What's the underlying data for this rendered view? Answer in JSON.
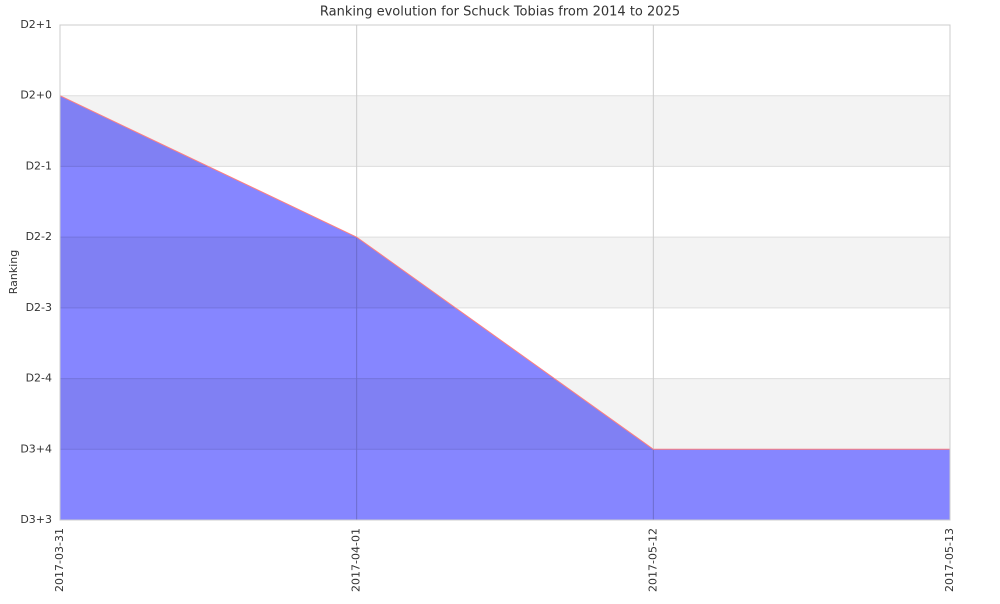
{
  "chart_data": {
    "type": "area",
    "title": "Ranking evolution for Schuck Tobias from 2014 to 2025",
    "y_label": "Ranking",
    "categories": [
      "2017-03-31",
      "2017-04-01",
      "2017-05-12",
      "2017-05-13"
    ],
    "values": [
      6,
      4,
      1,
      1
    ],
    "color": "#8080ff",
    "line_color": "#ff8080",
    "ylim": [
      0,
      7
    ],
    "yticks": [
      {
        "value": 0,
        "label": "D3+3"
      },
      {
        "value": 1,
        "label": "D3+4"
      },
      {
        "value": 2,
        "label": "D2-4"
      },
      {
        "value": 3,
        "label": "D2-3"
      },
      {
        "value": 4,
        "label": "D2-2"
      },
      {
        "value": 5,
        "label": "D2-1"
      },
      {
        "value": 6,
        "label": "D2+0"
      },
      {
        "value": 7,
        "label": "D2+1"
      }
    ],
    "grid": true
  }
}
